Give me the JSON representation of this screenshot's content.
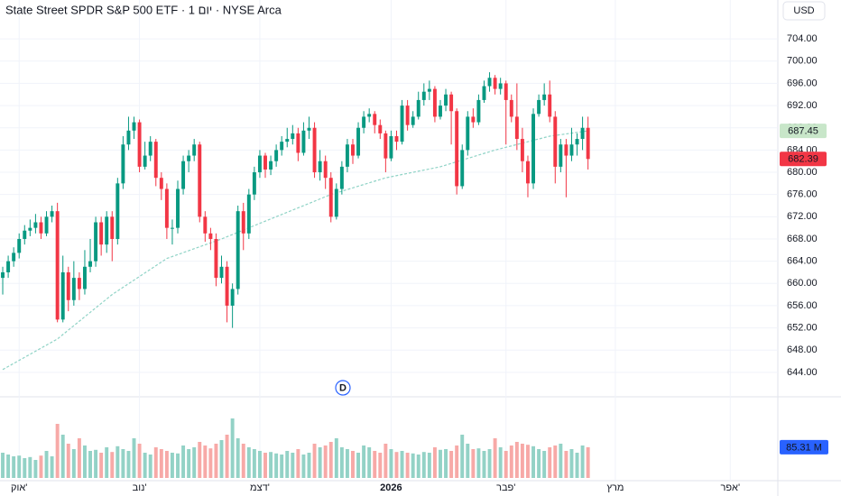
{
  "chart_data": {
    "type": "candlestick",
    "title": "State Street SPDR S&P 500 ETF · 1 יום · NYSE Arca",
    "currency": "USD",
    "event_marker": "D",
    "up_color": "#089981",
    "down_color": "#f23645",
    "grid": true,
    "open": [
      661,
      662,
      664,
      665.5,
      668,
      669.5,
      670,
      671,
      669,
      672,
      673,
      653.5,
      662,
      657,
      661,
      659,
      663,
      664,
      671,
      667,
      672,
      668,
      678,
      685,
      687.5,
      689,
      681,
      683,
      685.5,
      679,
      677,
      670,
      670,
      677,
      682,
      683,
      685,
      672,
      669,
      668,
      661,
      663,
      656,
      659,
      673,
      669,
      676,
      680,
      683,
      680.5,
      682,
      684,
      685.5,
      686,
      687,
      683.5,
      687.5,
      688,
      680,
      682,
      679,
      672,
      677,
      681,
      685,
      683,
      688,
      690,
      690.5,
      688.5,
      687,
      682.5,
      686.5,
      685.5,
      692,
      688.5,
      690,
      693,
      694.5,
      695,
      690,
      692,
      694,
      691,
      677.5,
      684,
      690,
      689,
      693,
      695.5,
      697,
      695,
      696,
      693,
      690,
      686,
      682,
      678,
      690.5,
      693,
      694,
      690,
      681,
      685,
      683,
      685,
      686,
      688
    ],
    "high": [
      663,
      665,
      666.5,
      669,
      670.5,
      671.5,
      672.5,
      672,
      673,
      674,
      674.5,
      665,
      663,
      664,
      662,
      666,
      668,
      672,
      672,
      673,
      673,
      679,
      686.5,
      690,
      690,
      689.5,
      685.5,
      686.5,
      686,
      680,
      678,
      671.5,
      678.5,
      683,
      684,
      686,
      685.5,
      673,
      670,
      669,
      665,
      664,
      660,
      674,
      674.5,
      677,
      681,
      684,
      683.5,
      683,
      685,
      686.5,
      688,
      688.5,
      688,
      689,
      690,
      689,
      684,
      683,
      680,
      678,
      682,
      686,
      686,
      689,
      691,
      691.5,
      691,
      689.5,
      687.5,
      687.5,
      687.5,
      693,
      693,
      691,
      694.5,
      696,
      696.5,
      695.5,
      693,
      695,
      694.5,
      691.5,
      685,
      691,
      691.5,
      694,
      696.5,
      698,
      697.5,
      697,
      696.5,
      694,
      696,
      688,
      683,
      691.5,
      694,
      696,
      696.5,
      691,
      686,
      686,
      688,
      687,
      690,
      690
    ],
    "low": [
      658,
      661,
      663,
      664.5,
      667,
      668.5,
      669,
      668,
      668.5,
      671,
      653,
      653,
      655,
      656,
      657,
      658,
      662,
      663,
      665,
      665.5,
      664,
      667,
      677,
      684,
      686,
      680,
      680.5,
      682,
      677.5,
      675,
      668,
      667,
      669,
      676,
      680,
      682,
      671,
      667.5,
      666,
      659.5,
      660,
      653,
      652,
      658,
      666,
      668,
      675,
      679,
      679,
      679.5,
      681,
      683,
      684.5,
      685,
      682,
      683,
      686,
      679,
      678.5,
      677,
      671,
      671.5,
      676,
      680,
      681.5,
      682.5,
      687,
      689,
      687,
      686,
      680,
      682,
      684,
      685,
      687.5,
      688,
      689.5,
      692,
      693,
      689,
      689.5,
      691,
      685,
      676,
      677,
      683,
      688,
      688.5,
      692.5,
      694.5,
      694,
      694,
      685,
      689,
      684,
      680,
      675.5,
      677,
      690,
      692,
      689,
      678,
      680,
      675.5,
      682,
      683,
      684,
      680.5
    ],
    "close": [
      662,
      664,
      665.5,
      668,
      669.5,
      670,
      671,
      669,
      672,
      673,
      653.5,
      662,
      657,
      661,
      659,
      663,
      664,
      671,
      667,
      672,
      668,
      678,
      685,
      687.5,
      689,
      681,
      683,
      685.5,
      679,
      677,
      670,
      670,
      677,
      682,
      683,
      685,
      672,
      669,
      668,
      661,
      663,
      656,
      659,
      673,
      669,
      676,
      680,
      683,
      680.5,
      682,
      684,
      685.5,
      686,
      687,
      683.5,
      687.5,
      688,
      680,
      682,
      679,
      672,
      677,
      681,
      685,
      683,
      688,
      690,
      690.5,
      688.5,
      687,
      682.5,
      686.5,
      685.5,
      692,
      688.5,
      690,
      693,
      694.5,
      695,
      690,
      692,
      694,
      691,
      677.5,
      684,
      690,
      689,
      693,
      695.5,
      697,
      695,
      696,
      693,
      690,
      686,
      682,
      678,
      690.5,
      693,
      694,
      690,
      681,
      685,
      683,
      685,
      686,
      688,
      682.39
    ],
    "xlim": [
      -0.5,
      141.7
    ],
    "xticks": [
      {
        "value": 3,
        "label": "אוק'"
      },
      {
        "value": 25,
        "label": "נוב'"
      },
      {
        "value": 47,
        "label": "דצמ'"
      },
      {
        "value": 71,
        "label": "2026"
      },
      {
        "value": 92,
        "label": "פבר'"
      },
      {
        "value": 112,
        "label": "מרץ"
      },
      {
        "value": 133,
        "label": "אפר'"
      }
    ],
    "ylim": [
      639.6,
      711
    ],
    "yticks": [
      {
        "value": 644,
        "label": "644.00"
      },
      {
        "value": 648,
        "label": "648.00"
      },
      {
        "value": 652,
        "label": "652.00"
      },
      {
        "value": 656,
        "label": "656.00"
      },
      {
        "value": 660,
        "label": "660.00"
      },
      {
        "value": 664,
        "label": "664.00"
      },
      {
        "value": 668,
        "label": "668.00"
      },
      {
        "value": 672,
        "label": "672.00"
      },
      {
        "value": 676,
        "label": "676.00"
      },
      {
        "value": 680,
        "label": "680.00"
      },
      {
        "value": 684,
        "label": "684.00"
      },
      {
        "value": 688,
        "label": "688.00"
      },
      {
        "value": 692,
        "label": "692.00"
      },
      {
        "value": 696,
        "label": "696.00"
      },
      {
        "value": 700,
        "label": "700.00"
      },
      {
        "value": 704,
        "label": "704.00"
      }
    ],
    "ma": {
      "color": "#8fd3c6",
      "x": [
        0,
        10,
        20,
        30,
        40,
        50,
        60,
        70,
        80,
        90,
        100,
        107
      ],
      "values": [
        644.5,
        650,
        658,
        664.5,
        668,
        672,
        676,
        679,
        681,
        684,
        686.5,
        687.45
      ]
    },
    "volume": {
      "up_color": "#93d2c6",
      "down_color": "#f7a9a7",
      "label_color": "#2962ff",
      "ylim": [
        0,
        170
      ],
      "label": "85.31 M",
      "values": [
        70,
        65,
        60,
        62,
        55,
        58,
        50,
        62,
        75,
        60,
        150,
        120,
        95,
        80,
        110,
        90,
        75,
        78,
        70,
        85,
        72,
        88,
        80,
        75,
        110,
        95,
        70,
        65,
        85,
        80,
        75,
        70,
        68,
        90,
        80,
        85,
        100,
        90,
        82,
        95,
        105,
        120,
        165,
        110,
        95,
        85,
        80,
        75,
        70,
        72,
        68,
        65,
        75,
        70,
        80,
        65,
        70,
        95,
        85,
        90,
        100,
        110,
        85,
        80,
        75,
        70,
        90,
        85,
        75,
        70,
        95,
        80,
        72,
        75,
        70,
        68,
        65,
        72,
        70,
        85,
        78,
        80,
        75,
        90,
        120,
        95,
        80,
        82,
        75,
        80,
        110,
        85,
        75,
        90,
        100,
        95,
        92,
        88,
        80,
        75,
        85,
        90,
        95,
        75,
        80,
        70,
        90,
        85.31
      ]
    }
  }
}
